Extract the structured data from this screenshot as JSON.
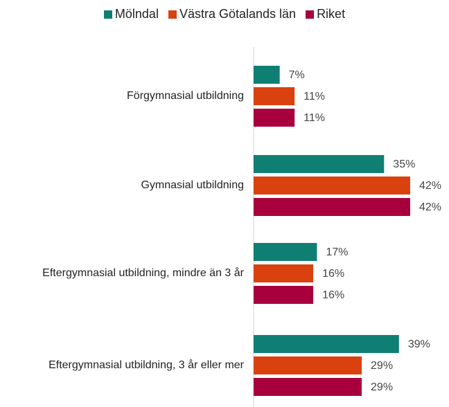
{
  "chart_data": {
    "type": "bar",
    "orientation": "horizontal",
    "categories": [
      "Förgymnasial utbildning",
      "Gymnasial utbildning",
      "Eftergymnasial utbildning, mindre än 3 år",
      "Eftergymnasial utbildning, 3 år eller mer"
    ],
    "series": [
      {
        "name": "Mölndal",
        "color": "#0f7f74",
        "values": [
          7,
          35,
          17,
          39
        ],
        "value_labels": [
          "7%",
          "35%",
          "17%",
          "39%"
        ]
      },
      {
        "name": "Västra Götalands län",
        "color": "#d9420f",
        "values": [
          11,
          42,
          16,
          29
        ],
        "value_labels": [
          "11%",
          "42%",
          "16%",
          "29%"
        ]
      },
      {
        "name": "Riket",
        "color": "#a8003c",
        "values": [
          11,
          42,
          16,
          29
        ],
        "value_labels": [
          "11%",
          "42%",
          "16%",
          "29%"
        ]
      }
    ],
    "legend": "top"
  }
}
